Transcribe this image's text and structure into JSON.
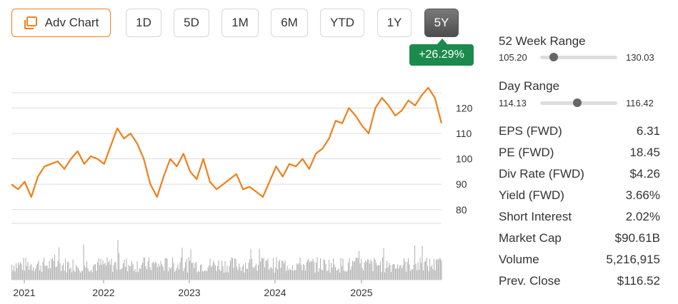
{
  "toolbar": {
    "adv_chart_label": "Adv Chart",
    "periods": [
      "1D",
      "5D",
      "1M",
      "6M",
      "YTD",
      "1Y",
      "5Y"
    ],
    "active_period": "5Y"
  },
  "change_badge": "+26.29%",
  "colors": {
    "accent": "#f07f1a",
    "positive": "#1b8a4c",
    "volume": "#b5b5b5"
  },
  "chart_data": {
    "type": "line",
    "x_ticks": [
      "2021",
      "2022",
      "2023",
      "2024",
      "2025"
    ],
    "y_ticks": [
      80,
      90,
      100,
      110,
      120
    ],
    "ylim": [
      76,
      126
    ],
    "grid": true,
    "series": [
      {
        "values": [
          90,
          88,
          91,
          85,
          93,
          97,
          98,
          99,
          96,
          100,
          103,
          98,
          101,
          100,
          98,
          105,
          112,
          108,
          110,
          106,
          100,
          90,
          85,
          93,
          100,
          97,
          102,
          95,
          92,
          100,
          91,
          88,
          90,
          92,
          94,
          88,
          89,
          87,
          85,
          91,
          97,
          93,
          98,
          97,
          100,
          96,
          102,
          104,
          108,
          115,
          114,
          120,
          117,
          113,
          110,
          120,
          124,
          121,
          117,
          119,
          123,
          121,
          125,
          128,
          124,
          114
        ]
      }
    ]
  },
  "stats": {
    "week52": {
      "title": "52 Week Range",
      "low": "105.20",
      "high": "130.03",
      "position": 0.18
    },
    "day": {
      "title": "Day Range",
      "low": "114.13",
      "high": "116.42",
      "position": 0.48
    },
    "rows": [
      {
        "label": "EPS (FWD)",
        "value": "6.31"
      },
      {
        "label": "PE (FWD)",
        "value": "18.45"
      },
      {
        "label": "Div Rate (FWD)",
        "value": "$4.26"
      },
      {
        "label": "Yield (FWD)",
        "value": "3.66%"
      },
      {
        "label": "Short Interest",
        "value": "2.02%"
      },
      {
        "label": "Market Cap",
        "value": "$90.61B"
      },
      {
        "label": "Volume",
        "value": "5,216,915"
      },
      {
        "label": "Prev. Close",
        "value": "$116.52"
      }
    ]
  }
}
